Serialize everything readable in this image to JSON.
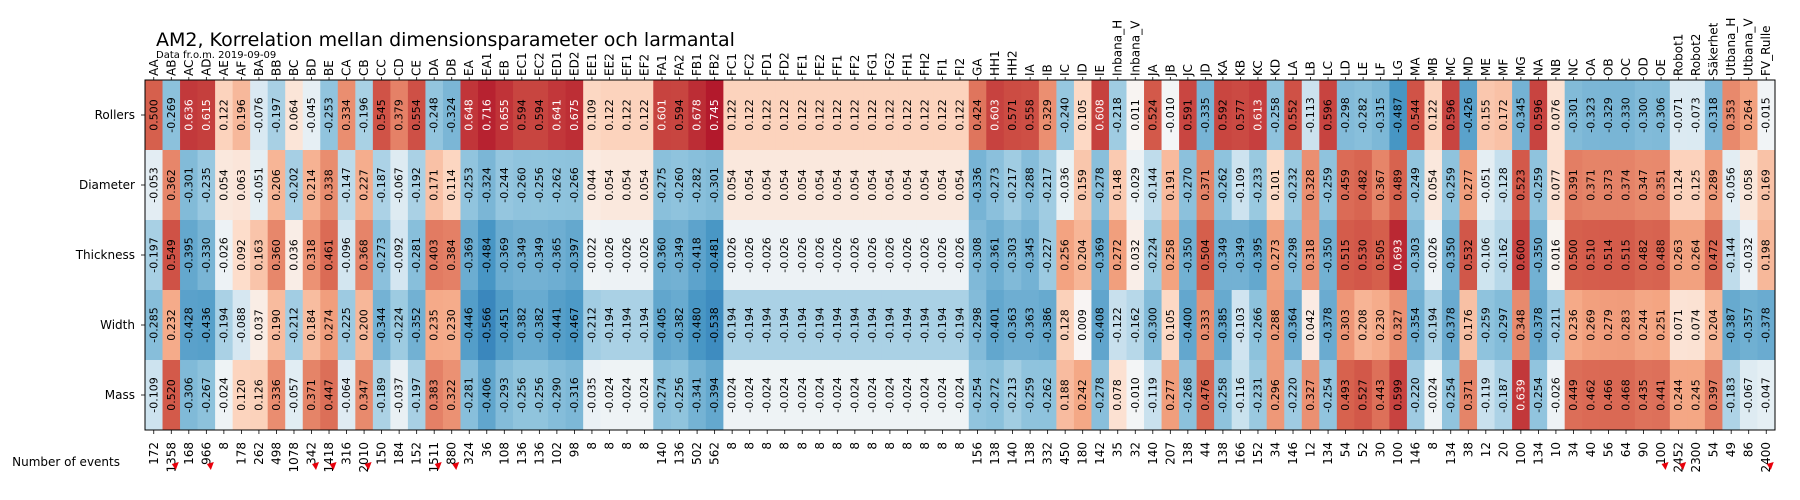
{
  "chart_data": {
    "type": "heatmap",
    "title": "AM2, Korrelation mellan dimensionsparameter och larmantal",
    "subtitle": "Data fr.o.m. 2019-09-09",
    "columns": [
      "AA",
      "AB",
      "AC",
      "AD",
      "AE",
      "AF",
      "BA",
      "BB",
      "BC",
      "BD",
      "BE",
      "CA",
      "CB",
      "CC",
      "CD",
      "CE",
      "DA",
      "DB",
      "EA",
      "EA1",
      "EB",
      "EC1",
      "EC2",
      "ED1",
      "ED2",
      "EE1",
      "EE2",
      "EF1",
      "EF2",
      "FA1",
      "FA2",
      "FB1",
      "FB2",
      "FC1",
      "FC2",
      "FD1",
      "FD2",
      "FE1",
      "FE2",
      "FF1",
      "FF2",
      "FG1",
      "FG2",
      "FH1",
      "FH2",
      "FI1",
      "FI2",
      "GA",
      "HH1",
      "HH2",
      "IA",
      "IB",
      "IC",
      "ID",
      "IE",
      "Inbana_H",
      "Inbana_V",
      "JA",
      "JB",
      "JC",
      "JD",
      "KA",
      "KB",
      "KC",
      "KD",
      "LA",
      "LB",
      "LC",
      "LD",
      "LE",
      "LF",
      "LG",
      "MA",
      "MB",
      "MC",
      "MD",
      "ME",
      "MF",
      "MG",
      "NA",
      "NB",
      "NC",
      "OA",
      "OB",
      "OC",
      "OD",
      "OE",
      "Robot1",
      "Robot2",
      "Säkerhet",
      "Utbana_H",
      "Utbana_V",
      "FV_Rulle"
    ],
    "rows": [
      "Rollers",
      "Diameter",
      "Thickness",
      "Width",
      "Mass"
    ],
    "values": [
      [
        0.5,
        -0.269,
        0.636,
        0.615,
        0.122,
        0.196,
        -0.076,
        -0.197,
        0.064,
        -0.045,
        -0.253,
        0.334,
        -0.196,
        0.545,
        0.379,
        0.554,
        -0.248,
        -0.324,
        0.648,
        0.716,
        0.655,
        0.594,
        0.594,
        0.641,
        0.675,
        0.109,
        0.122,
        0.122,
        0.122,
        0.601,
        0.594,
        0.678,
        0.745,
        0.122,
        0.122,
        0.122,
        0.122,
        0.122,
        0.122,
        0.122,
        0.122,
        0.122,
        0.122,
        0.122,
        0.122,
        0.122,
        0.122,
        0.424,
        0.603,
        0.571,
        0.558,
        0.329,
        -0.24,
        0.105,
        0.608,
        -0.218,
        0.011,
        0.524,
        -0.01,
        0.591,
        -0.335,
        0.592,
        0.577,
        0.613,
        -0.258,
        0.552,
        -0.113,
        0.596,
        -0.298,
        -0.282,
        -0.315,
        -0.487,
        0.544,
        0.122,
        0.596,
        -0.426,
        0.155,
        0.172,
        -0.345,
        0.596,
        0.076,
        -0.301,
        -0.323,
        -0.329,
        -0.33,
        -0.3,
        -0.306,
        -0.071,
        -0.073,
        -0.318,
        0.353,
        0.264,
        -0.015
      ],
      [
        -0.053,
        0.362,
        -0.301,
        -0.235,
        0.054,
        0.063,
        -0.051,
        0.206,
        -0.202,
        0.214,
        0.338,
        -0.147,
        0.227,
        -0.187,
        -0.067,
        -0.192,
        0.171,
        0.114,
        -0.253,
        -0.324,
        -0.244,
        -0.26,
        -0.256,
        -0.262,
        -0.266,
        0.044,
        0.054,
        0.054,
        0.054,
        -0.275,
        -0.26,
        -0.282,
        -0.301,
        0.054,
        0.054,
        0.054,
        0.054,
        0.054,
        0.054,
        0.054,
        0.054,
        0.054,
        0.054,
        0.054,
        0.054,
        0.054,
        0.054,
        -0.336,
        -0.273,
        -0.217,
        -0.288,
        -0.217,
        -0.036,
        0.159,
        -0.278,
        0.148,
        -0.029,
        -0.144,
        0.191,
        -0.27,
        0.371,
        -0.262,
        -0.109,
        -0.233,
        0.101,
        -0.232,
        0.328,
        -0.259,
        0.459,
        0.482,
        0.367,
        0.489,
        -0.249,
        0.054,
        -0.259,
        0.277,
        -0.051,
        -0.128,
        0.523,
        -0.259,
        0.077,
        0.391,
        0.371,
        0.373,
        0.374,
        0.347,
        0.351,
        0.124,
        0.125,
        0.289,
        -0.056,
        0.058,
        0.169
      ],
      [
        -0.197,
        0.549,
        -0.395,
        -0.33,
        -0.026,
        0.092,
        0.163,
        0.36,
        0.036,
        0.318,
        0.461,
        -0.096,
        0.368,
        -0.273,
        -0.092,
        -0.281,
        0.403,
        0.384,
        -0.369,
        -0.484,
        -0.369,
        -0.349,
        -0.349,
        -0.365,
        -0.397,
        -0.022,
        -0.026,
        -0.026,
        -0.026,
        -0.36,
        -0.349,
        -0.418,
        -0.481,
        -0.026,
        -0.026,
        -0.026,
        -0.026,
        -0.026,
        -0.026,
        -0.026,
        -0.026,
        -0.026,
        -0.026,
        -0.026,
        -0.026,
        -0.026,
        -0.026,
        -0.308,
        -0.361,
        -0.303,
        -0.345,
        -0.227,
        0.256,
        0.204,
        -0.369,
        0.272,
        0.032,
        -0.224,
        0.258,
        -0.35,
        0.504,
        -0.349,
        -0.349,
        -0.395,
        0.273,
        -0.298,
        0.318,
        -0.35,
        0.515,
        0.53,
        0.505,
        0.693,
        -0.303,
        -0.026,
        -0.35,
        0.532,
        -0.106,
        -0.162,
        0.6,
        -0.35,
        0.016,
        0.5,
        0.51,
        0.514,
        0.515,
        0.482,
        0.488,
        0.263,
        0.264,
        0.472,
        -0.144,
        -0.032,
        0.198
      ],
      [
        -0.285,
        0.232,
        -0.428,
        -0.436,
        -0.194,
        -0.088,
        0.037,
        0.19,
        -0.212,
        0.184,
        0.274,
        -0.225,
        0.2,
        -0.344,
        -0.224,
        -0.352,
        0.235,
        0.23,
        -0.446,
        -0.566,
        -0.451,
        -0.382,
        -0.382,
        -0.441,
        -0.467,
        -0.212,
        -0.194,
        -0.194,
        -0.194,
        -0.405,
        -0.382,
        -0.48,
        -0.538,
        -0.194,
        -0.194,
        -0.194,
        -0.194,
        -0.194,
        -0.194,
        -0.194,
        -0.194,
        -0.194,
        -0.194,
        -0.194,
        -0.194,
        -0.194,
        -0.194,
        -0.298,
        -0.401,
        -0.363,
        -0.363,
        -0.386,
        0.128,
        0.009,
        -0.408,
        -0.122,
        -0.162,
        -0.3,
        0.105,
        -0.4,
        0.333,
        -0.385,
        -0.103,
        -0.266,
        0.288,
        -0.364,
        0.042,
        -0.378,
        0.303,
        0.208,
        0.23,
        0.327,
        -0.354,
        -0.194,
        -0.378,
        0.176,
        -0.259,
        -0.297,
        0.348,
        -0.378,
        -0.211,
        0.236,
        0.269,
        0.279,
        0.283,
        0.244,
        0.251,
        0.071,
        0.074,
        0.204,
        -0.387,
        -0.357,
        -0.378
      ],
      [
        -0.109,
        0.52,
        -0.306,
        -0.267,
        -0.024,
        0.12,
        0.126,
        0.336,
        -0.057,
        0.371,
        0.447,
        -0.064,
        0.347,
        -0.189,
        -0.037,
        -0.197,
        0.383,
        0.322,
        -0.281,
        -0.406,
        -0.293,
        -0.256,
        -0.256,
        -0.29,
        -0.316,
        -0.035,
        -0.024,
        -0.024,
        -0.024,
        -0.274,
        -0.256,
        -0.341,
        -0.394,
        -0.024,
        -0.024,
        -0.024,
        -0.024,
        -0.024,
        -0.024,
        -0.024,
        -0.024,
        -0.024,
        -0.024,
        -0.024,
        -0.024,
        -0.024,
        -0.024,
        -0.254,
        -0.272,
        -0.213,
        -0.259,
        -0.262,
        0.188,
        0.242,
        -0.278,
        0.078,
        -0.01,
        -0.119,
        0.277,
        -0.268,
        0.476,
        -0.258,
        -0.116,
        -0.231,
        0.296,
        -0.22,
        0.327,
        -0.254,
        0.493,
        0.527,
        0.443,
        0.599,
        -0.22,
        -0.024,
        -0.254,
        0.371,
        -0.119,
        -0.187,
        0.639,
        -0.254,
        -0.026,
        0.449,
        0.462,
        0.466,
        0.468,
        0.435,
        0.441,
        0.244,
        0.245,
        0.397,
        -0.183,
        -0.067,
        -0.047
      ]
    ],
    "events_label": "Number of events",
    "events": [
      "172",
      "1358",
      "168",
      "966",
      "8",
      "178",
      "262",
      "498",
      "1078",
      "342",
      "1418",
      "316",
      "2010",
      "150",
      "184",
      "152",
      "1511",
      "880",
      "324",
      "36",
      "108",
      "136",
      "136",
      "102",
      "98",
      "8",
      "8",
      "8",
      "8",
      "140",
      "136",
      "502",
      "562",
      "8",
      "8",
      "8",
      "8",
      "8",
      "8",
      "8",
      "8",
      "8",
      "8",
      "8",
      "8",
      "8",
      "8",
      "156",
      "138",
      "140",
      "138",
      "332",
      "450",
      "180",
      "142",
      "35",
      "32",
      "140",
      "207",
      "138",
      "44",
      "138",
      "166",
      "152",
      "34",
      "146",
      "12",
      "134",
      "54",
      "52",
      "30",
      "100",
      "146",
      "8",
      "134",
      "38",
      "12",
      "20",
      "100",
      "134",
      "10",
      "34",
      "40",
      "56",
      "64",
      "90",
      "100",
      "2452",
      "2300",
      "54",
      "49",
      "86",
      "2400"
    ],
    "events_markers": [
      1,
      3,
      9,
      10,
      12,
      16,
      17,
      86,
      87,
      92
    ],
    "colormap": "RdBu_r",
    "color_range": [
      -1,
      1
    ],
    "marker_color": "#e8000b"
  }
}
